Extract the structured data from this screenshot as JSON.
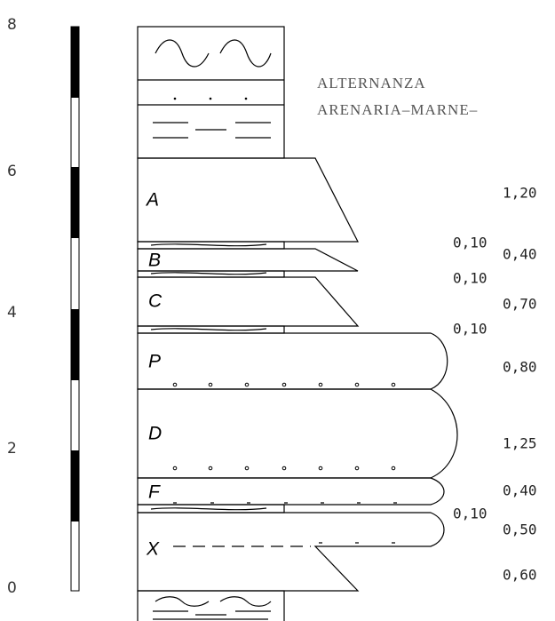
{
  "scale": {
    "labels": [
      "8",
      "6",
      "4",
      "2",
      "0"
    ]
  },
  "header": {
    "lines": [
      "ALTERNANZA",
      "ARENARIA–MARNE–"
    ]
  },
  "layers": [
    {
      "label": "A",
      "thickness": "1,20"
    },
    {
      "label": "B",
      "thickness": "0,40"
    },
    {
      "label": "C",
      "thickness": "0,70"
    },
    {
      "label": "P",
      "thickness": "0,80"
    },
    {
      "label": "D",
      "thickness": "1,25"
    },
    {
      "label": "F",
      "thickness": "0,40"
    },
    {
      "label": "X",
      "thickness": "0,50"
    },
    {
      "thickness": "0,60"
    }
  ],
  "interlayers": [
    "0,10",
    "0,10",
    "0,10",
    "0,10"
  ]
}
